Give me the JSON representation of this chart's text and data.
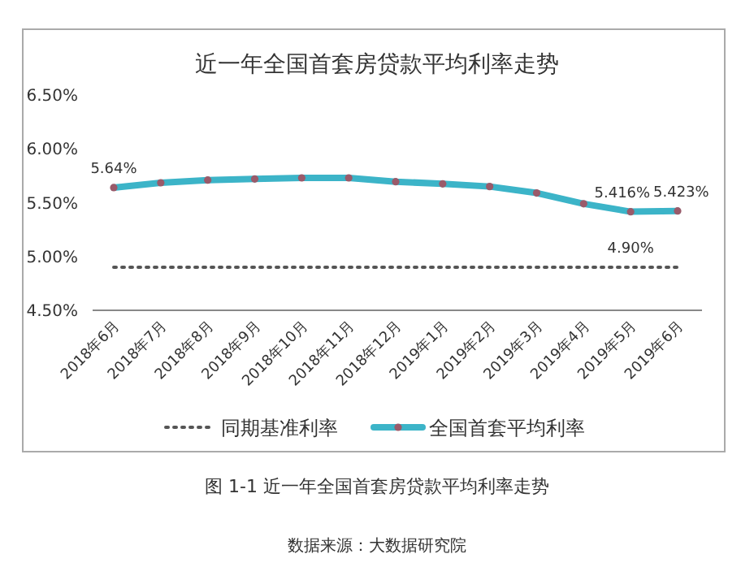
{
  "chart_data": {
    "type": "line",
    "title": "近一年全国首套房贷款平均利率走势",
    "categories": [
      "2018年6月",
      "2018年7月",
      "2018年8月",
      "2018年9月",
      "2018年10月",
      "2018年11月",
      "2018年12月",
      "2019年1月",
      "2019年2月",
      "2019年3月",
      "2019年4月",
      "2019年5月",
      "2019年6月"
    ],
    "series": [
      {
        "name": "同期基准利率",
        "color": "#555555",
        "line_style": "dotted",
        "marker": "none",
        "values": [
          4.9,
          4.9,
          4.9,
          4.9,
          4.9,
          4.9,
          4.9,
          4.9,
          4.9,
          4.9,
          4.9,
          4.9,
          4.9
        ],
        "value_labels": [
          null,
          null,
          null,
          null,
          null,
          null,
          null,
          null,
          null,
          null,
          null,
          "4.90%",
          null
        ]
      },
      {
        "name": "全国首套平均利率",
        "color": "#3cb4c8",
        "line_style": "solid",
        "marker": "circle",
        "values": [
          5.64,
          5.685,
          5.71,
          5.72,
          5.73,
          5.73,
          5.695,
          5.675,
          5.65,
          5.59,
          5.49,
          5.416,
          5.423
        ],
        "value_labels": [
          "5.64%",
          null,
          null,
          null,
          null,
          null,
          null,
          null,
          null,
          null,
          null,
          "5.416%",
          "5.423%"
        ]
      }
    ],
    "ylim": [
      4.5,
      6.5
    ],
    "yticks": [
      {
        "value": 4.5,
        "label": "4.50%"
      },
      {
        "value": 5.0,
        "label": "5.00%"
      },
      {
        "value": 5.5,
        "label": "5.50%"
      },
      {
        "value": 6.0,
        "label": "6.00%"
      },
      {
        "value": 6.5,
        "label": "6.50%"
      }
    ],
    "legend": "bottom",
    "grid": false,
    "annotations": [
      "图 1-1 近一年全国首套房贷款平均利率走势",
      "数据来源：大数据研究院"
    ]
  }
}
